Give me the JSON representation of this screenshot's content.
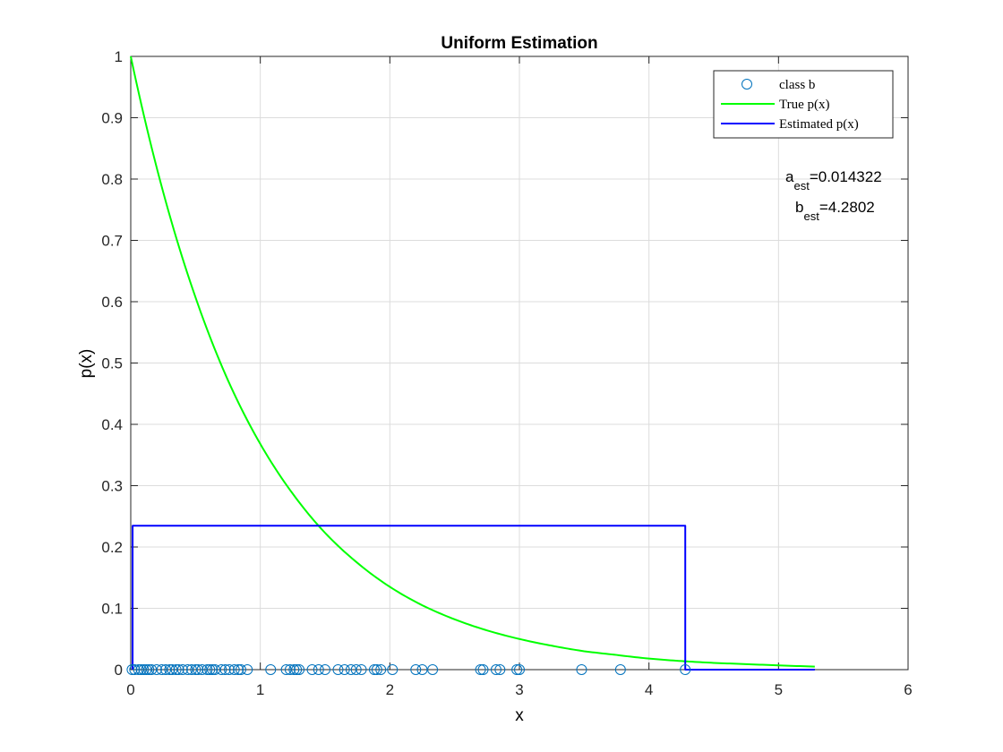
{
  "chart_data": {
    "type": "line",
    "title": "Uniform Estimation",
    "xlabel": "x",
    "ylabel": "p(x)",
    "xlim": [
      0,
      6
    ],
    "ylim": [
      0,
      1
    ],
    "xticks": [
      0,
      1,
      2,
      3,
      4,
      5,
      6
    ],
    "yticks": [
      0,
      0.1,
      0.2,
      0.3,
      0.4,
      0.5,
      0.6,
      0.7,
      0.8,
      0.9,
      1
    ],
    "xtick_labels": [
      "0",
      "1",
      "2",
      "3",
      "4",
      "5",
      "6"
    ],
    "ytick_labels": [
      "0",
      "0.1",
      "0.2",
      "0.3",
      "0.4",
      "0.5",
      "0.6",
      "0.7",
      "0.8",
      "0.9",
      "1"
    ],
    "grid": true,
    "legend_position": "top-right",
    "series": [
      {
        "name": "class b",
        "kind": "scatter",
        "marker": "circle-open",
        "color": "#0072BD",
        "x": [
          0.01,
          0.03,
          0.06,
          0.08,
          0.1,
          0.12,
          0.14,
          0.16,
          0.2,
          0.24,
          0.27,
          0.3,
          0.32,
          0.35,
          0.37,
          0.4,
          0.44,
          0.47,
          0.5,
          0.52,
          0.55,
          0.59,
          0.61,
          0.63,
          0.65,
          0.7,
          0.73,
          0.76,
          0.8,
          0.83,
          0.85,
          0.9,
          1.08,
          1.2,
          1.23,
          1.26,
          1.28,
          1.3,
          1.4,
          1.45,
          1.5,
          1.6,
          1.65,
          1.7,
          1.74,
          1.78,
          1.88,
          1.9,
          1.93,
          2.02,
          2.2,
          2.25,
          2.33,
          2.7,
          2.72,
          2.82,
          2.85,
          2.98,
          3.0,
          3.48,
          3.78,
          4.28
        ],
        "y": [
          0,
          0,
          0,
          0,
          0,
          0,
          0,
          0,
          0,
          0,
          0,
          0,
          0,
          0,
          0,
          0,
          0,
          0,
          0,
          0,
          0,
          0,
          0,
          0,
          0,
          0,
          0,
          0,
          0,
          0,
          0,
          0,
          0,
          0,
          0,
          0,
          0,
          0,
          0,
          0,
          0,
          0,
          0,
          0,
          0,
          0,
          0,
          0,
          0,
          0,
          0,
          0,
          0,
          0,
          0,
          0,
          0,
          0,
          0,
          0,
          0,
          0
        ]
      },
      {
        "name": "True p(x)",
        "kind": "line",
        "color": "#00FF00",
        "x": [
          0,
          0.25,
          0.5,
          0.75,
          1,
          1.25,
          1.5,
          1.75,
          2,
          2.25,
          2.5,
          2.75,
          3,
          3.25,
          3.5,
          3.75,
          4,
          4.25,
          4.5,
          4.75,
          5,
          5.28
        ],
        "y": [
          1,
          0.779,
          0.607,
          0.472,
          0.368,
          0.287,
          0.223,
          0.174,
          0.135,
          0.105,
          0.082,
          0.064,
          0.05,
          0.039,
          0.03,
          0.024,
          0.018,
          0.014,
          0.011,
          0.009,
          0.007,
          0.005
        ]
      },
      {
        "name": "Estimated p(x)",
        "kind": "line",
        "color": "#0000FF",
        "x": [
          0.014322,
          0.014322,
          4.2802,
          4.2802,
          5.28
        ],
        "y": [
          0,
          0.2347,
          0.2347,
          0,
          0
        ]
      }
    ],
    "annotations": [
      {
        "base": "a",
        "sub": "est",
        "value": "=0.014322"
      },
      {
        "base": "b",
        "sub": "est",
        "value": "=4.2802"
      }
    ]
  }
}
